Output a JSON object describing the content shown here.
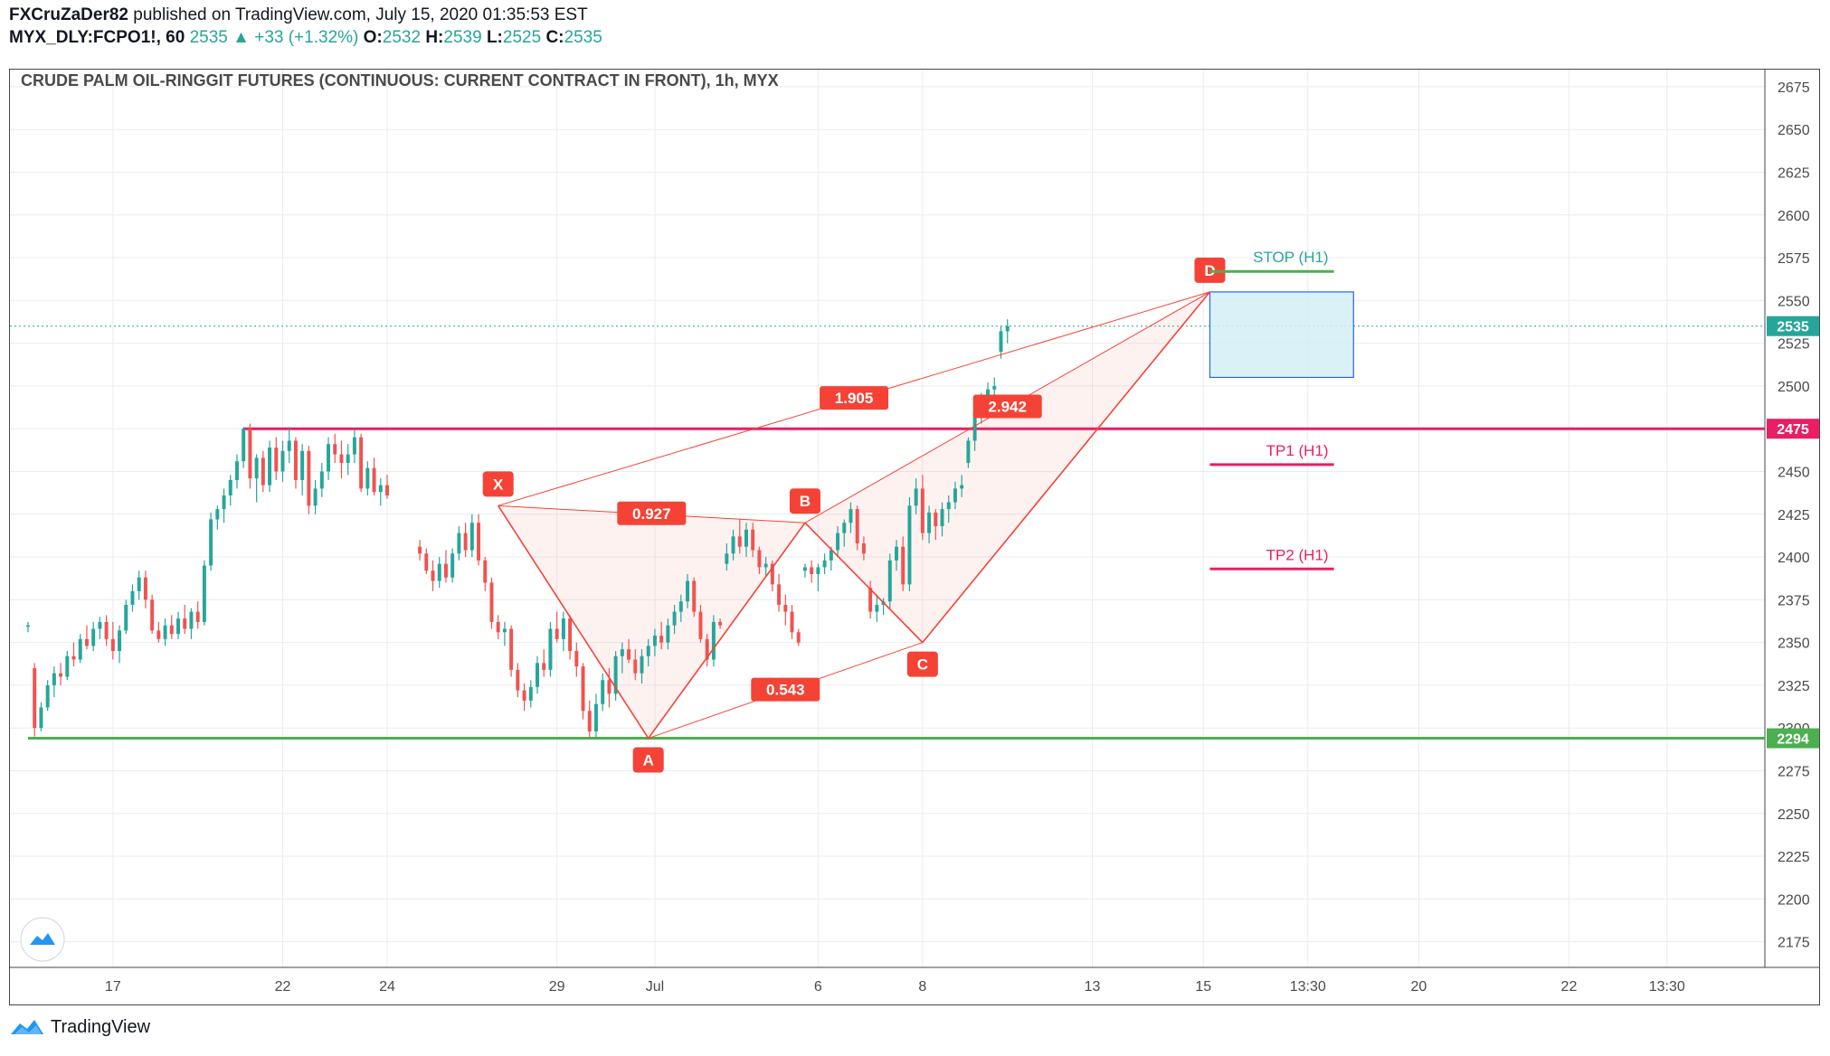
{
  "header": {
    "author": "FXCruZaDer82",
    "published_text": "published on TradingView.com, July 15, 2020 01:35:53 EST",
    "symbol": "MYX_DLY:FCPO1!, 60",
    "last": "2535",
    "change": "+33 (+1.32%)",
    "o_label": "O:",
    "o_value": "2532",
    "h_label": "H:",
    "h_value": "2539",
    "l_label": "L:",
    "l_value": "2525",
    "c_label": "C:",
    "c_value": "2535"
  },
  "footer": {
    "brand": "TradingView",
    "icon": "tradingview-logo-icon"
  },
  "colors": {
    "bull": "#26a69a",
    "bear": "#ef5350",
    "pattern": "#f44336",
    "stop_line": "#4caf50",
    "target_line": "#e91e63",
    "support_line": "#4caf50",
    "resistance_line": "#e91e63",
    "zone_fill": "#d4eef7",
    "zone_border": "#2962ff",
    "grid": "#e9ecf2"
  },
  "chart_data": {
    "type": "candlestick",
    "title": "CRUDE PALM OIL-RINGGIT FUTURES (CONTINUOUS: CURRENT CONTRACT IN FRONT), 1h, MYX",
    "ylim": [
      2160,
      2685
    ],
    "y_ticks": [
      2175,
      2200,
      2225,
      2250,
      2275,
      2300,
      2325,
      2350,
      2375,
      2400,
      2425,
      2450,
      2475,
      2500,
      2525,
      2550,
      2575,
      2600,
      2625,
      2650,
      2675
    ],
    "x_ticks": [
      {
        "label": "17",
        "bar": 13
      },
      {
        "label": "22",
        "bar": 39
      },
      {
        "label": "24",
        "bar": 55
      },
      {
        "label": "29",
        "bar": 81
      },
      {
        "label": "Jul",
        "bar": 96
      },
      {
        "label": "6",
        "bar": 121
      },
      {
        "label": "8",
        "bar": 137
      },
      {
        "label": "13",
        "bar": 163
      },
      {
        "label": "15",
        "bar": 180
      },
      {
        "label": "13:30",
        "bar": 196
      },
      {
        "label": "20",
        "bar": 213
      },
      {
        "label": "22",
        "bar": 236
      },
      {
        "label": "13:30",
        "bar": 251
      }
    ],
    "bar_count_span": 266,
    "candles_ohlc": [
      [
        2360,
        2362,
        2356,
        2360
      ],
      [
        2335,
        2338,
        2295,
        2300
      ],
      [
        2300,
        2315,
        2298,
        2312
      ],
      [
        2312,
        2328,
        2310,
        2325
      ],
      [
        2325,
        2336,
        2318,
        2332
      ],
      [
        2332,
        2338,
        2325,
        2330
      ],
      [
        2330,
        2345,
        2328,
        2342
      ],
      [
        2342,
        2350,
        2336,
        2340
      ],
      [
        2340,
        2355,
        2338,
        2352
      ],
      [
        2352,
        2360,
        2346,
        2348
      ],
      [
        2348,
        2362,
        2345,
        2358
      ],
      [
        2358,
        2365,
        2352,
        2362
      ],
      [
        2362,
        2366,
        2348,
        2352
      ],
      [
        2352,
        2362,
        2340,
        2345
      ],
      [
        2345,
        2360,
        2338,
        2357
      ],
      [
        2357,
        2375,
        2355,
        2372
      ],
      [
        2372,
        2384,
        2368,
        2380
      ],
      [
        2380,
        2392,
        2375,
        2388
      ],
      [
        2388,
        2392,
        2370,
        2375
      ],
      [
        2375,
        2378,
        2355,
        2357
      ],
      [
        2357,
        2362,
        2350,
        2352
      ],
      [
        2352,
        2364,
        2348,
        2360
      ],
      [
        2360,
        2366,
        2352,
        2355
      ],
      [
        2355,
        2368,
        2352,
        2364
      ],
      [
        2364,
        2372,
        2355,
        2358
      ],
      [
        2358,
        2370,
        2352,
        2368
      ],
      [
        2368,
        2374,
        2358,
        2362
      ],
      [
        2362,
        2398,
        2360,
        2395
      ],
      [
        2395,
        2426,
        2392,
        2422
      ],
      [
        2422,
        2430,
        2416,
        2428
      ],
      [
        2428,
        2440,
        2420,
        2436
      ],
      [
        2436,
        2448,
        2430,
        2445
      ],
      [
        2445,
        2460,
        2440,
        2456
      ],
      [
        2456,
        2476,
        2452,
        2475
      ],
      [
        2475,
        2478,
        2440,
        2446
      ],
      [
        2446,
        2460,
        2432,
        2458
      ],
      [
        2458,
        2462,
        2438,
        2442
      ],
      [
        2442,
        2468,
        2438,
        2464
      ],
      [
        2464,
        2470,
        2445,
        2450
      ],
      [
        2450,
        2468,
        2444,
        2462
      ],
      [
        2462,
        2476,
        2455,
        2468
      ],
      [
        2468,
        2470,
        2440,
        2445
      ],
      [
        2445,
        2466,
        2436,
        2462
      ],
      [
        2462,
        2465,
        2425,
        2430
      ],
      [
        2430,
        2445,
        2425,
        2440
      ],
      [
        2440,
        2455,
        2435,
        2450
      ],
      [
        2450,
        2470,
        2445,
        2466
      ],
      [
        2466,
        2472,
        2455,
        2460
      ],
      [
        2460,
        2468,
        2446,
        2455
      ],
      [
        2455,
        2466,
        2448,
        2460
      ],
      [
        2460,
        2475,
        2455,
        2470
      ],
      [
        2470,
        2472,
        2438,
        2440
      ],
      [
        2440,
        2456,
        2436,
        2452
      ],
      [
        2452,
        2458,
        2436,
        2438
      ],
      [
        2438,
        2446,
        2430,
        2442
      ],
      [
        2442,
        2448,
        2434,
        2436
      ],
      [
        2406,
        2410,
        2398,
        2402
      ],
      [
        2402,
        2405,
        2390,
        2392
      ],
      [
        2392,
        2398,
        2380,
        2386
      ],
      [
        2386,
        2400,
        2382,
        2396
      ],
      [
        2396,
        2404,
        2385,
        2388
      ],
      [
        2388,
        2405,
        2385,
        2402
      ],
      [
        2402,
        2418,
        2398,
        2414
      ],
      [
        2414,
        2420,
        2400,
        2404
      ],
      [
        2404,
        2425,
        2400,
        2420
      ],
      [
        2420,
        2425,
        2395,
        2398
      ],
      [
        2398,
        2400,
        2380,
        2385
      ],
      [
        2385,
        2388,
        2358,
        2362
      ],
      [
        2362,
        2366,
        2352,
        2356
      ],
      [
        2356,
        2362,
        2348,
        2358
      ],
      [
        2358,
        2360,
        2330,
        2334
      ],
      [
        2334,
        2338,
        2318,
        2322
      ],
      [
        2322,
        2326,
        2310,
        2316
      ],
      [
        2316,
        2328,
        2312,
        2324
      ],
      [
        2324,
        2342,
        2320,
        2338
      ],
      [
        2338,
        2346,
        2330,
        2334
      ],
      [
        2334,
        2362,
        2330,
        2358
      ],
      [
        2358,
        2368,
        2350,
        2352
      ],
      [
        2352,
        2368,
        2345,
        2364
      ],
      [
        2364,
        2366,
        2340,
        2345
      ],
      [
        2345,
        2350,
        2330,
        2336
      ],
      [
        2336,
        2338,
        2305,
        2310
      ],
      [
        2310,
        2316,
        2294,
        2298
      ],
      [
        2298,
        2320,
        2294,
        2314
      ],
      [
        2314,
        2332,
        2310,
        2328
      ],
      [
        2328,
        2335,
        2312,
        2320
      ],
      [
        2320,
        2345,
        2316,
        2342
      ],
      [
        2342,
        2350,
        2332,
        2346
      ],
      [
        2346,
        2352,
        2338,
        2340
      ],
      [
        2340,
        2346,
        2328,
        2332
      ],
      [
        2332,
        2346,
        2326,
        2342
      ],
      [
        2342,
        2352,
        2336,
        2348
      ],
      [
        2348,
        2358,
        2342,
        2354
      ],
      [
        2354,
        2362,
        2346,
        2350
      ],
      [
        2350,
        2364,
        2346,
        2360
      ],
      [
        2360,
        2372,
        2355,
        2368
      ],
      [
        2368,
        2378,
        2362,
        2374
      ],
      [
        2374,
        2390,
        2370,
        2386
      ],
      [
        2386,
        2388,
        2365,
        2368
      ],
      [
        2368,
        2372,
        2350,
        2352
      ],
      [
        2352,
        2355,
        2336,
        2340
      ],
      [
        2340,
        2366,
        2336,
        2362
      ],
      [
        2362,
        2364,
        2358,
        2360
      ],
      [
        2396,
        2408,
        2392,
        2402
      ],
      [
        2402,
        2416,
        2398,
        2412
      ],
      [
        2412,
        2422,
        2402,
        2406
      ],
      [
        2406,
        2420,
        2400,
        2416
      ],
      [
        2416,
        2420,
        2400,
        2404
      ],
      [
        2404,
        2406,
        2390,
        2394
      ],
      [
        2394,
        2400,
        2388,
        2396
      ],
      [
        2396,
        2398,
        2380,
        2384
      ],
      [
        2384,
        2390,
        2368,
        2372
      ],
      [
        2372,
        2378,
        2360,
        2368
      ],
      [
        2368,
        2372,
        2352,
        2356
      ],
      [
        2356,
        2358,
        2348,
        2350
      ],
      [
        2392,
        2396,
        2388,
        2394
      ],
      [
        2394,
        2398,
        2385,
        2390
      ],
      [
        2390,
        2396,
        2380,
        2394
      ],
      [
        2394,
        2402,
        2390,
        2398
      ],
      [
        2398,
        2406,
        2392,
        2404
      ],
      [
        2404,
        2418,
        2400,
        2414
      ],
      [
        2414,
        2422,
        2406,
        2420
      ],
      [
        2420,
        2432,
        2414,
        2428
      ],
      [
        2428,
        2430,
        2404,
        2408
      ],
      [
        2408,
        2412,
        2398,
        2402
      ],
      [
        2382,
        2386,
        2364,
        2368
      ],
      [
        2368,
        2378,
        2362,
        2372
      ],
      [
        2372,
        2376,
        2366,
        2374
      ],
      [
        2374,
        2402,
        2370,
        2398
      ],
      [
        2398,
        2410,
        2392,
        2406
      ],
      [
        2406,
        2412,
        2380,
        2384
      ],
      [
        2384,
        2435,
        2380,
        2430
      ],
      [
        2430,
        2446,
        2425,
        2440
      ],
      [
        2440,
        2448,
        2410,
        2414
      ],
      [
        2414,
        2430,
        2408,
        2426
      ],
      [
        2426,
        2428,
        2410,
        2418
      ],
      [
        2418,
        2432,
        2412,
        2428
      ],
      [
        2428,
        2436,
        2420,
        2432
      ],
      [
        2432,
        2444,
        2428,
        2440
      ],
      [
        2440,
        2448,
        2435,
        2442
      ],
      [
        2455,
        2470,
        2452,
        2468
      ],
      [
        2468,
        2486,
        2462,
        2484
      ],
      [
        2484,
        2496,
        2478,
        2492
      ],
      [
        2492,
        2502,
        2488,
        2498
      ],
      [
        2498,
        2505,
        2494,
        2500
      ],
      [
        2520,
        2535,
        2516,
        2532
      ],
      [
        2532,
        2539,
        2525,
        2535
      ]
    ],
    "candle_bars": [
      0,
      1,
      2,
      3,
      4,
      5,
      6,
      7,
      8,
      9,
      10,
      11,
      12,
      13,
      14,
      15,
      16,
      17,
      18,
      19,
      20,
      21,
      22,
      23,
      24,
      25,
      26,
      27,
      28,
      29,
      30,
      31,
      32,
      33,
      34,
      35,
      36,
      37,
      38,
      39,
      40,
      41,
      42,
      43,
      44,
      45,
      46,
      47,
      48,
      49,
      50,
      51,
      52,
      53,
      54,
      55,
      60,
      61,
      62,
      63,
      64,
      65,
      66,
      67,
      68,
      69,
      70,
      71,
      72,
      73,
      74,
      75,
      76,
      77,
      78,
      79,
      80,
      81,
      82,
      83,
      84,
      85,
      86,
      87,
      88,
      89,
      90,
      91,
      92,
      93,
      94,
      95,
      96,
      97,
      98,
      99,
      100,
      101,
      102,
      103,
      104,
      105,
      106,
      107,
      108,
      109,
      110,
      111,
      112,
      113,
      114,
      115,
      116,
      117,
      118,
      119,
      120,
      121,
      122,
      123,
      124,
      125,
      126,
      127,
      128,
      129,
      130,
      131,
      132,
      133,
      134,
      135,
      136,
      137,
      138,
      139,
      140,
      141,
      142,
      143,
      144,
      145,
      146,
      147,
      148,
      149,
      150,
      151,
      152,
      153,
      154,
      155,
      156,
      157,
      158,
      159,
      160,
      161,
      162,
      163
    ],
    "horizontal_lines": [
      {
        "value": 2475,
        "label": "2475",
        "kind": "resistance"
      },
      {
        "value": 2294,
        "label": "2294",
        "kind": "support"
      }
    ],
    "last_price": {
      "value": 2535,
      "label": "2535"
    },
    "pattern_points": [
      {
        "label": "X",
        "bar": 72,
        "value": 2430
      },
      {
        "label": "A",
        "bar": 95,
        "value": 2294
      },
      {
        "label": "B",
        "bar": 119,
        "value": 2420
      },
      {
        "label": "C",
        "bar": 137,
        "value": 2350
      },
      {
        "label": "D",
        "bar": 181,
        "value": 2555
      }
    ],
    "ratios": [
      {
        "label": "0.927",
        "from": "X",
        "to": "B"
      },
      {
        "label": "0.543",
        "from": "A",
        "to": "C"
      },
      {
        "label": "2.942",
        "from": "B",
        "to": "D"
      },
      {
        "label": "1.905",
        "from": "X",
        "to": "D"
      }
    ],
    "target_zone": {
      "from_bar": 181,
      "to_bar": 203,
      "top": 2555,
      "bottom": 2505
    },
    "trade_levels": [
      {
        "label": "STOP (H1)",
        "value": 2567,
        "from_bar": 181,
        "to_bar": 200,
        "kind": "stop"
      },
      {
        "label": "TP1 (H1)",
        "value": 2454,
        "from_bar": 181,
        "to_bar": 200,
        "kind": "target"
      },
      {
        "label": "TP2 (H1)",
        "value": 2393,
        "from_bar": 181,
        "to_bar": 200,
        "kind": "target"
      }
    ]
  }
}
